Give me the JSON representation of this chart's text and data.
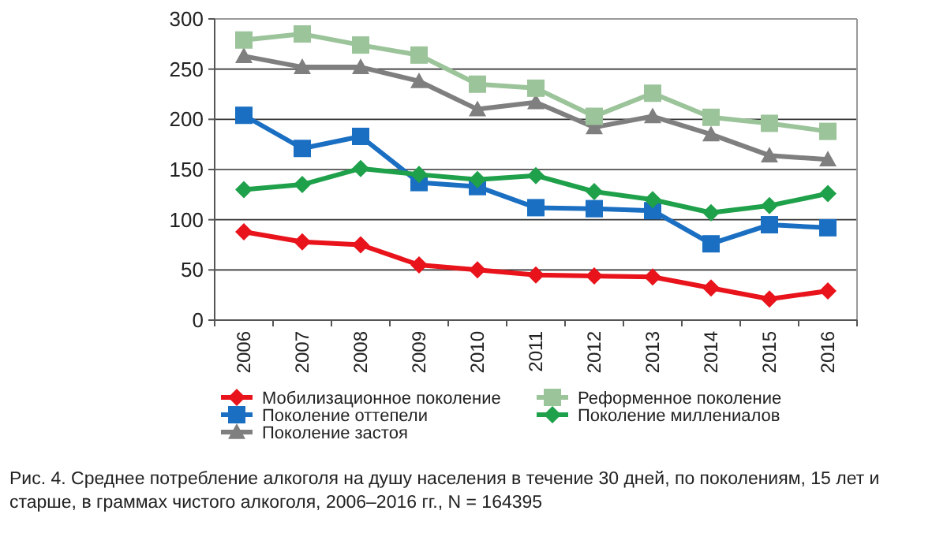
{
  "chart_data": {
    "type": "line",
    "categories": [
      "2006",
      "2007",
      "2008",
      "2009",
      "2010",
      "2011",
      "2012",
      "2013",
      "2014",
      "2015",
      "2016"
    ],
    "series": [
      {
        "name": "Мобилизационное поколение",
        "color": "#e8131b",
        "marker": "diamond",
        "values": [
          88,
          78,
          75,
          55,
          50,
          45,
          44,
          43,
          32,
          21,
          29
        ]
      },
      {
        "name": "Поколение оттепели",
        "color": "#1a6fc2",
        "marker": "square",
        "values": [
          204,
          171,
          183,
          137,
          133,
          112,
          111,
          109,
          76,
          95,
          92
        ]
      },
      {
        "name": "Поколение застоя",
        "color": "#7f7f7f",
        "marker": "triangle",
        "values": [
          263,
          252,
          252,
          238,
          210,
          217,
          192,
          203,
          185,
          164,
          160
        ]
      },
      {
        "name": "Реформенное поколение",
        "color": "#9cc49a",
        "marker": "square",
        "values": [
          279,
          285,
          274,
          264,
          235,
          231,
          203,
          226,
          202,
          196,
          188
        ]
      },
      {
        "name": "Поколение миллениалов",
        "color": "#1fa04a",
        "marker": "diamond",
        "values": [
          130,
          135,
          151,
          145,
          140,
          144,
          128,
          120,
          107,
          114,
          126
        ]
      }
    ],
    "ylim": [
      0,
      300
    ],
    "yticks": [
      0,
      50,
      100,
      150,
      200,
      250,
      300
    ],
    "grid": "y",
    "legend": "bottom",
    "annotations": [
      "Рис. 4. Среднее потребление алкоголя на душу населения в течение 30 дней, по поколениям, 15 лет и старше, в граммах чистого алкоголя, 2006–2016 гг., N = 164395"
    ]
  }
}
